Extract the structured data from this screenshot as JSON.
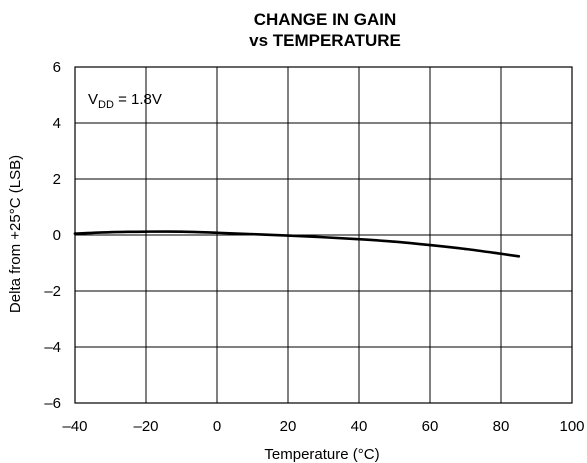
{
  "chart_data": {
    "type": "line",
    "title_lines": [
      "CHANGE IN GAIN",
      "vs TEMPERATURE"
    ],
    "xlabel": "Temperature (°C)",
    "ylabel": "Delta from +25°C (LSB)",
    "xlim": [
      -40,
      100
    ],
    "ylim": [
      -6,
      6
    ],
    "xticks": [
      -40,
      -20,
      0,
      20,
      40,
      60,
      80,
      100
    ],
    "xtick_labels": [
      "–40",
      "–20",
      "0",
      "20",
      "40",
      "60",
      "80",
      "100"
    ],
    "yticks": [
      -6,
      -4,
      -2,
      0,
      2,
      4,
      6
    ],
    "ytick_labels": [
      "–6",
      "–4",
      "–2",
      "0",
      "2",
      "4",
      "6"
    ],
    "grid": true,
    "annotation": {
      "prefix": "V",
      "subscript": "DD",
      "suffix": " = 1.8V"
    },
    "series": [
      {
        "x": [
          -40,
          -30,
          -20,
          -10,
          0,
          10,
          20,
          30,
          40,
          50,
          60,
          70,
          80,
          85
        ],
        "y": [
          0.05,
          0.1,
          0.12,
          0.12,
          0.08,
          0.03,
          -0.02,
          -0.08,
          -0.15,
          -0.24,
          -0.36,
          -0.5,
          -0.67,
          -0.76
        ]
      }
    ]
  }
}
